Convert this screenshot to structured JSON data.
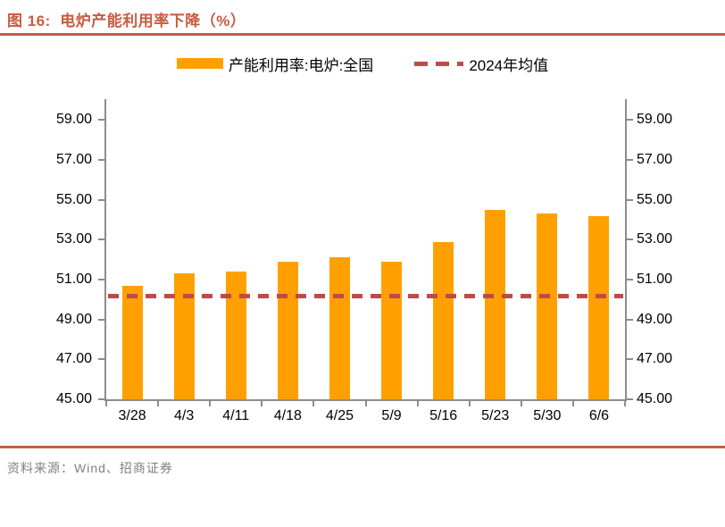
{
  "header": {
    "title": "图 16:  电炉产能利用率下降（%）"
  },
  "legend": {
    "bar_label": "产能利用率:电炉:全国",
    "average_label": "2024年均值"
  },
  "footer": {
    "source": "资料来源：Wind、招商证券"
  },
  "colors": {
    "bar": "#FFA000",
    "average_line": "#BE4B48",
    "title": "#C75B40",
    "rule": "#BE6242",
    "axis": "#8C8C8C",
    "source_text": "#808080"
  },
  "chart_data": {
    "type": "bar",
    "title": "电炉产能利用率下降（%）",
    "categories": [
      "3/28",
      "4/3",
      "4/11",
      "4/18",
      "4/25",
      "5/9",
      "5/16",
      "5/23",
      "5/30",
      "6/6"
    ],
    "series": [
      {
        "name": "产能利用率:电炉:全国",
        "type": "bar",
        "values": [
          50.7,
          51.3,
          51.4,
          51.9,
          52.1,
          51.9,
          52.9,
          54.5,
          54.3,
          54.2
        ]
      },
      {
        "name": "2024年均值",
        "type": "dashed_line",
        "value": 50.2
      }
    ],
    "ylim": [
      45,
      60
    ],
    "yticks": [
      45,
      47,
      49,
      51,
      53,
      55,
      57,
      59
    ],
    "ytick_labels": [
      "45.00",
      "47.00",
      "49.00",
      "51.00",
      "53.00",
      "55.00",
      "57.00",
      "59.00"
    ],
    "dual_y_axis": true,
    "grid": false,
    "legend_position": "top"
  }
}
